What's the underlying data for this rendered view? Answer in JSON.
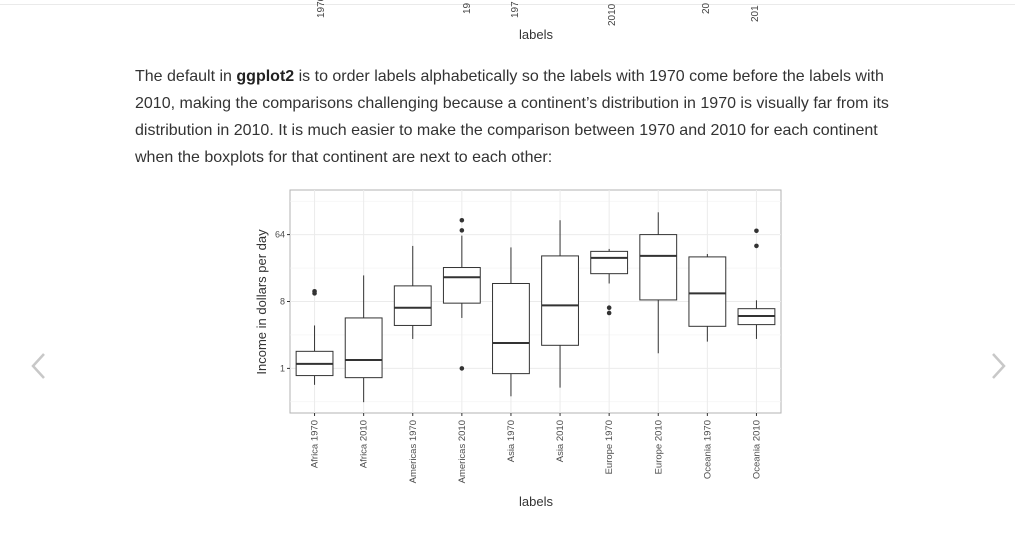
{
  "prev_chart": {
    "tick_labels": [
      "1970",
      "19",
      "197",
      "2010",
      "20",
      "201"
    ],
    "xlabel": "labels"
  },
  "paragraph": {
    "before": "The default in ",
    "bold": "ggplot2",
    "after": " is to order labels alphabetically so the labels with 1970 come before the labels with 2010, making the comparisons challenging because a continent’s distribution in 1970 is visually far from its distribution in 2010. It is much easier to make the comparison between 1970 and 2010 for each continent when the boxplots for that continent are next to each other:"
  },
  "nav": {
    "prev_icon": "chevron-left-icon",
    "next_icon": "chevron-right-icon",
    "color": "#c8c8c8"
  },
  "chart_data": {
    "type": "boxplot",
    "xlabel": "labels",
    "ylabel": "Income in dollars per day",
    "y_scale": "log2",
    "y_ticks": [
      1,
      8,
      64
    ],
    "ylim": [
      0.25,
      256
    ],
    "grid": true,
    "categories": [
      "Africa 1970",
      "Africa 2010",
      "Americas 1970",
      "Americas 2010",
      "Asia 1970",
      "Asia 2010",
      "Europe 1970",
      "Europe 2010",
      "Oceania 1970",
      "Oceania 2010"
    ],
    "boxes": [
      {
        "whisker_low": 0.6,
        "q1": 0.8,
        "median": 1.15,
        "q3": 1.7,
        "whisker_high": 3.8,
        "outliers": [
          10.3,
          11.0
        ]
      },
      {
        "whisker_low": 0.35,
        "q1": 0.75,
        "median": 1.3,
        "q3": 4.8,
        "whisker_high": 18,
        "outliers": []
      },
      {
        "whisker_low": 2.5,
        "q1": 3.8,
        "median": 6.6,
        "q3": 13,
        "whisker_high": 45,
        "outliers": []
      },
      {
        "whisker_low": 4.8,
        "q1": 7.6,
        "median": 17,
        "q3": 23,
        "whisker_high": 62,
        "outliers": [
          1.0,
          73,
          100
        ]
      },
      {
        "whisker_low": 0.42,
        "q1": 0.85,
        "median": 2.2,
        "q3": 14,
        "whisker_high": 43,
        "outliers": []
      },
      {
        "whisker_low": 0.55,
        "q1": 2.05,
        "median": 7.1,
        "q3": 33,
        "whisker_high": 100,
        "outliers": []
      },
      {
        "whisker_low": 14,
        "q1": 19,
        "median": 31,
        "q3": 38,
        "whisker_high": 41,
        "outliers": [
          5.6,
          6.6
        ]
      },
      {
        "whisker_low": 1.6,
        "q1": 8.4,
        "median": 33,
        "q3": 64,
        "whisker_high": 128,
        "outliers": []
      },
      {
        "whisker_low": 2.3,
        "q1": 3.7,
        "median": 10.3,
        "q3": 32,
        "whisker_high": 35,
        "outliers": []
      },
      {
        "whisker_low": 2.5,
        "q1": 3.9,
        "median": 5.1,
        "q3": 6.4,
        "whisker_high": 8.3,
        "outliers": [
          45,
          72
        ]
      }
    ]
  }
}
